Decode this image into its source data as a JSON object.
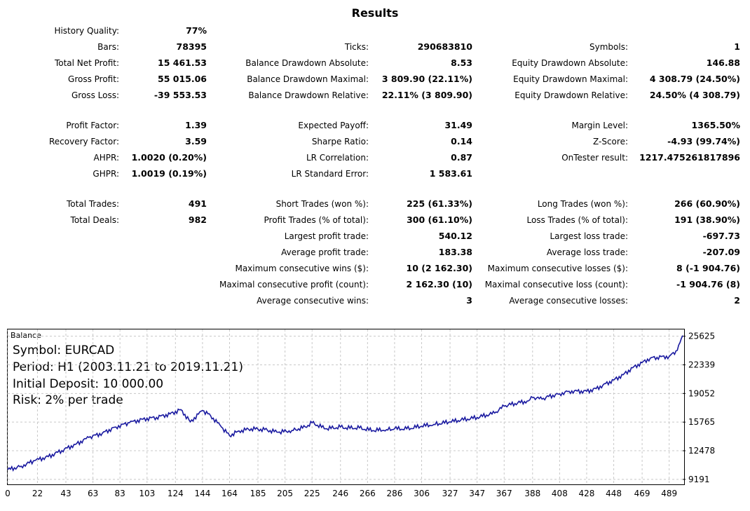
{
  "report": {
    "title": "Results",
    "col1": [
      {
        "label": "History Quality:",
        "value": "77%"
      },
      {
        "label": "Bars:",
        "value": "78395"
      },
      {
        "label": "Total Net Profit:",
        "value": "15 461.53"
      },
      {
        "label": "Gross Profit:",
        "value": "55 015.06"
      },
      {
        "label": "Gross Loss:",
        "value": "-39 553.53"
      },
      {
        "label": "Profit Factor:",
        "value": "1.39"
      },
      {
        "label": "Recovery Factor:",
        "value": "3.59"
      },
      {
        "label": "AHPR:",
        "value": "1.0020 (0.20%)"
      },
      {
        "label": "GHPR:",
        "value": "1.0019 (0.19%)"
      },
      {
        "label": "Total Trades:",
        "value": "491"
      },
      {
        "label": "Total Deals:",
        "value": "982"
      }
    ],
    "col2": [
      {
        "label": "Ticks:",
        "value": "290683810"
      },
      {
        "label": "Balance Drawdown Absolute:",
        "value": "8.53"
      },
      {
        "label": "Balance Drawdown Maximal:",
        "value": "3 809.90 (22.11%)"
      },
      {
        "label": "Balance Drawdown Relative:",
        "value": "22.11% (3 809.90)"
      },
      {
        "label": "Expected Payoff:",
        "value": "31.49"
      },
      {
        "label": "Sharpe Ratio:",
        "value": "0.14"
      },
      {
        "label": "LR Correlation:",
        "value": "0.87"
      },
      {
        "label": "LR Standard Error:",
        "value": "1 583.61"
      },
      {
        "label": "Short Trades (won %):",
        "value": "225 (61.33%)"
      },
      {
        "label": "Profit Trades (% of total):",
        "value": "300 (61.10%)"
      },
      {
        "label": "Largest profit trade:",
        "value": "540.12"
      },
      {
        "label": "Average profit trade:",
        "value": "183.38"
      },
      {
        "label": "Maximum consecutive wins ($):",
        "value": "10 (2 162.30)"
      },
      {
        "label": "Maximal consecutive profit (count):",
        "value": "2 162.30 (10)"
      },
      {
        "label": "Average consecutive wins:",
        "value": "3"
      }
    ],
    "col3": [
      {
        "label": "Symbols:",
        "value": "1"
      },
      {
        "label": "Equity Drawdown Absolute:",
        "value": "146.88"
      },
      {
        "label": "Equity Drawdown Maximal:",
        "value": "4 308.79 (24.50%)"
      },
      {
        "label": "Equity Drawdown Relative:",
        "value": "24.50% (4 308.79)"
      },
      {
        "label": "Margin Level:",
        "value": "1365.50%"
      },
      {
        "label": "Z-Score:",
        "value": "-4.93 (99.74%)"
      },
      {
        "label": "OnTester result:",
        "value": "1217.475261817896"
      },
      {
        "label": "Long Trades (won %):",
        "value": "266 (60.90%)"
      },
      {
        "label": "Loss Trades (% of total):",
        "value": "191 (38.90%)"
      },
      {
        "label": "Largest loss trade:",
        "value": "-697.73"
      },
      {
        "label": "Average loss trade:",
        "value": "-207.09"
      },
      {
        "label": "Maximum consecutive losses ($):",
        "value": "8 (-1 904.76)"
      },
      {
        "label": "Maximal consecutive loss (count):",
        "value": "-1 904.76 (8)"
      },
      {
        "label": "Average consecutive losses:",
        "value": "2"
      }
    ]
  },
  "chart_data": {
    "type": "line",
    "title": "Balance",
    "info_lines": [
      "Symbol: EURCAD",
      "Period: H1 (2003.11.21 to 2019.11.21)",
      "Initial Deposit: 10 000.00",
      "Risk: 2% per trade"
    ],
    "x_ticks": [
      0,
      22,
      43,
      63,
      83,
      103,
      124,
      144,
      164,
      185,
      205,
      225,
      246,
      266,
      286,
      306,
      327,
      347,
      367,
      388,
      408,
      428,
      448,
      469,
      489
    ],
    "y_ticks": [
      9191,
      12478,
      15765,
      19052,
      22339,
      25625
    ],
    "xlim": [
      0,
      499
    ],
    "ylim": [
      8700,
      26400
    ],
    "grid": true,
    "line_color": "#1a1aa0",
    "series": [
      {
        "x": [
          0,
          10,
          20,
          30,
          40,
          50,
          60,
          70,
          80,
          90,
          100,
          110,
          120,
          128,
          135,
          144,
          150,
          158,
          164,
          170,
          180,
          190,
          200,
          210,
          220,
          225,
          235,
          246,
          250,
          260,
          270,
          280,
          286,
          295,
          306,
          315,
          327,
          335,
          347,
          360,
          367,
          375,
          385,
          388,
          395,
          400,
          408,
          415,
          428,
          435,
          440,
          448,
          455,
          462,
          469,
          475,
          480,
          489,
          495,
          499
        ],
        "y": [
          10300,
          10700,
          11350,
          11800,
          12500,
          13200,
          14000,
          14500,
          15200,
          15700,
          16100,
          16300,
          16700,
          17200,
          15800,
          17100,
          16500,
          15200,
          14200,
          14700,
          15000,
          14900,
          14600,
          14800,
          15200,
          15700,
          15000,
          15200,
          15100,
          15100,
          14800,
          14900,
          15000,
          15000,
          15300,
          15500,
          15800,
          16000,
          16300,
          16800,
          17600,
          17900,
          18200,
          18600,
          18400,
          18700,
          19000,
          19300,
          19300,
          19600,
          20000,
          20600,
          21200,
          22000,
          22600,
          23100,
          23200,
          23300,
          24000,
          25700
        ]
      }
    ]
  }
}
